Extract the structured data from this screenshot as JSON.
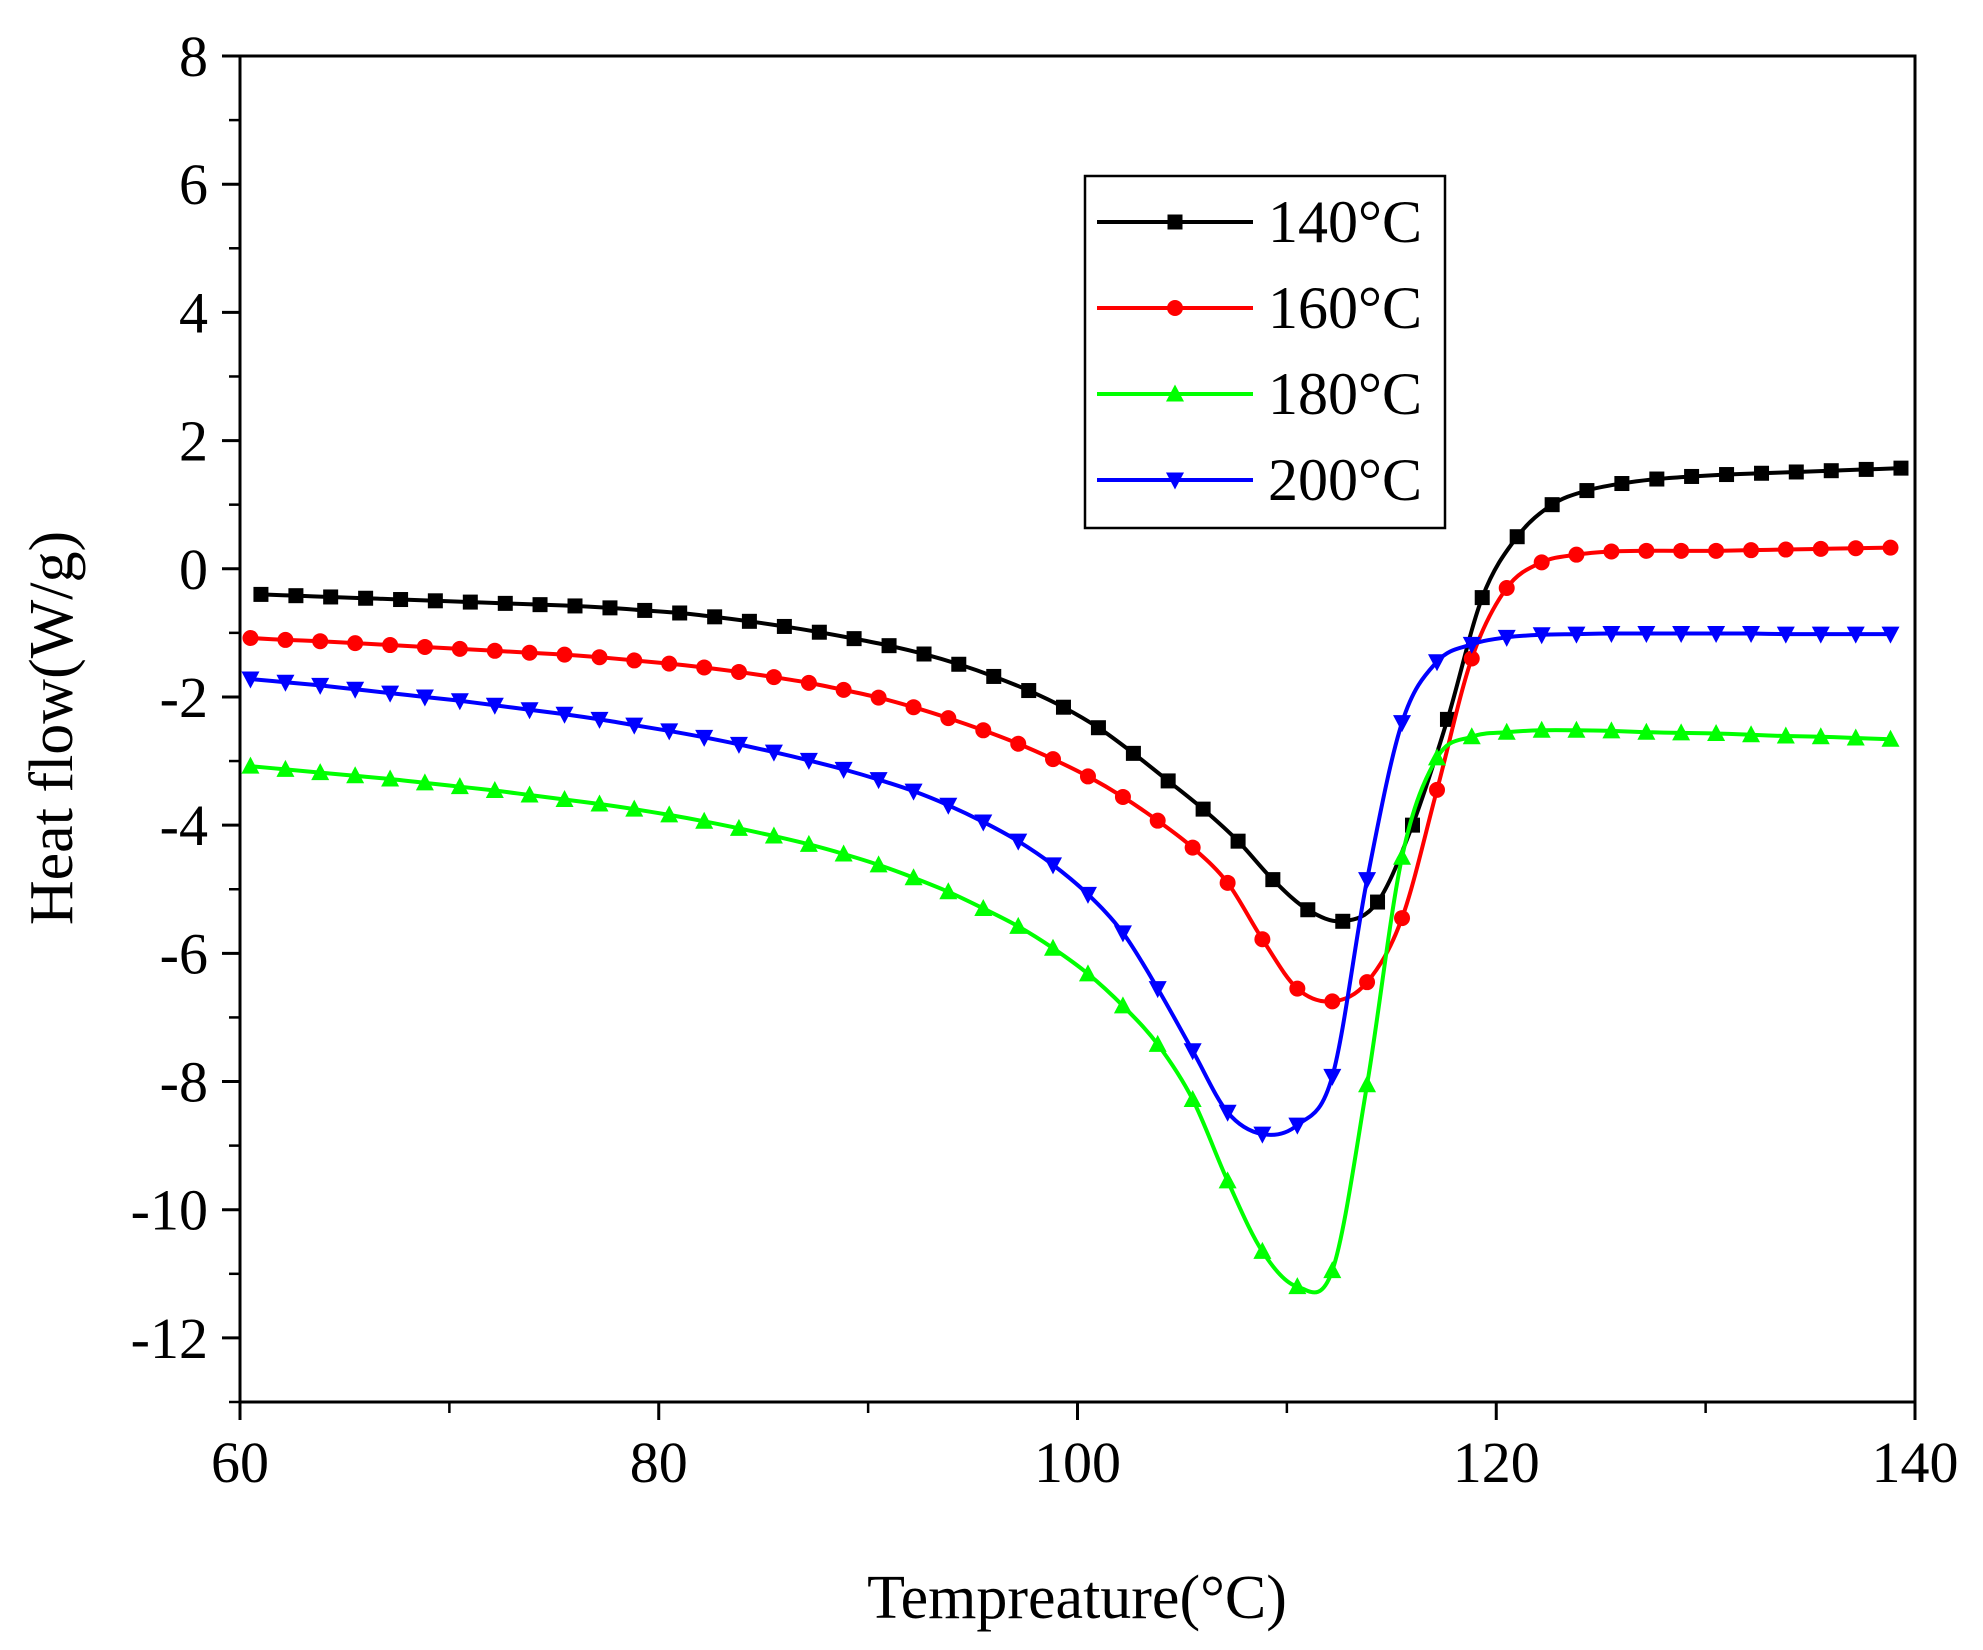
{
  "chart_data": {
    "type": "line",
    "title": "",
    "xlabel": "Tempreature(°C)",
    "ylabel": "Heat flow(W/g)",
    "xlim": [
      60,
      140
    ],
    "ylim": [
      -13,
      8
    ],
    "xticks": [
      60,
      80,
      100,
      120,
      140
    ],
    "xtick_labels": [
      "60",
      "80",
      "100",
      "120",
      "140"
    ],
    "yticks": [
      8,
      6,
      4,
      2,
      0,
      -2,
      -4,
      -6,
      -8,
      -10,
      -12
    ],
    "ytick_labels": [
      "8",
      "6",
      "4",
      "2",
      "0",
      "-2",
      "-4",
      "-6",
      "-8",
      "-10",
      "-12"
    ],
    "grid": false,
    "legend_position": "top-right",
    "series": [
      {
        "name": "140°C",
        "color": "#000000",
        "marker": "square",
        "x": [
          61,
          62.67,
          64.33,
          66,
          67.67,
          69.33,
          71,
          72.67,
          74.33,
          76,
          77.67,
          79.33,
          81,
          82.67,
          84.33,
          86,
          87.67,
          89.33,
          91,
          92.67,
          94.33,
          96,
          97.67,
          99.33,
          101,
          102.67,
          104.33,
          106,
          107.67,
          109.33,
          111,
          112.67,
          114.33,
          116,
          117.67,
          119.33,
          121,
          122.67,
          124.33,
          126,
          127.67,
          129.33,
          131,
          132.67,
          134.33,
          136,
          137.67,
          139.33
        ],
        "y": [
          -0.4,
          -0.42,
          -0.44,
          -0.46,
          -0.48,
          -0.5,
          -0.52,
          -0.54,
          -0.56,
          -0.58,
          -0.61,
          -0.65,
          -0.69,
          -0.75,
          -0.82,
          -0.9,
          -0.99,
          -1.09,
          -1.2,
          -1.33,
          -1.49,
          -1.68,
          -1.9,
          -2.16,
          -2.48,
          -2.88,
          -3.31,
          -3.75,
          -4.25,
          -4.85,
          -5.32,
          -5.5,
          -5.2,
          -4,
          -2.35,
          -0.45,
          0.5,
          1.0,
          1.22,
          1.33,
          1.4,
          1.44,
          1.47,
          1.49,
          1.51,
          1.53,
          1.55,
          1.57
        ]
      },
      {
        "name": "160°C",
        "color": "#ff0000",
        "marker": "circle",
        "x": [
          60.5,
          62.17,
          63.83,
          65.5,
          67.17,
          68.83,
          70.5,
          72.17,
          73.83,
          75.5,
          77.17,
          78.83,
          80.5,
          82.17,
          83.83,
          85.5,
          87.17,
          88.83,
          90.5,
          92.17,
          93.83,
          95.5,
          97.17,
          98.83,
          100.5,
          102.17,
          103.83,
          105.5,
          107.17,
          108.83,
          110.5,
          112.17,
          113.83,
          115.5,
          117.17,
          118.83,
          120.5,
          122.17,
          123.83,
          125.5,
          127.17,
          128.83,
          130.5,
          132.17,
          133.83,
          135.5,
          137.17,
          138.83
        ],
        "y": [
          -1.08,
          -1.11,
          -1.13,
          -1.16,
          -1.19,
          -1.22,
          -1.25,
          -1.28,
          -1.31,
          -1.34,
          -1.38,
          -1.43,
          -1.48,
          -1.54,
          -1.61,
          -1.69,
          -1.78,
          -1.89,
          -2.01,
          -2.16,
          -2.33,
          -2.52,
          -2.73,
          -2.97,
          -3.24,
          -3.56,
          -3.93,
          -4.35,
          -4.9,
          -5.78,
          -6.55,
          -6.75,
          -6.45,
          -5.45,
          -3.45,
          -1.4,
          -0.3,
          0.1,
          0.22,
          0.27,
          0.28,
          0.28,
          0.28,
          0.29,
          0.3,
          0.31,
          0.32,
          0.33
        ]
      },
      {
        "name": "180°C",
        "color": "#00ff00",
        "marker": "triangle-up",
        "x": [
          60.5,
          62.17,
          63.83,
          65.5,
          67.17,
          68.83,
          70.5,
          72.17,
          73.83,
          75.5,
          77.17,
          78.83,
          80.5,
          82.17,
          83.83,
          85.5,
          87.17,
          88.83,
          90.5,
          92.17,
          93.83,
          95.5,
          97.17,
          98.83,
          100.5,
          102.17,
          103.83,
          105.5,
          107.17,
          108.83,
          110.5,
          112.17,
          113.83,
          115.5,
          117.17,
          118.83,
          120.5,
          122.17,
          123.83,
          125.5,
          127.17,
          128.83,
          130.5,
          132.17,
          133.83,
          135.5,
          137.17,
          138.83
        ],
        "y": [
          -3.08,
          -3.13,
          -3.18,
          -3.23,
          -3.28,
          -3.34,
          -3.4,
          -3.46,
          -3.53,
          -3.6,
          -3.67,
          -3.75,
          -3.84,
          -3.94,
          -4.05,
          -4.17,
          -4.3,
          -4.45,
          -4.62,
          -4.82,
          -5.04,
          -5.3,
          -5.58,
          -5.92,
          -6.32,
          -6.82,
          -7.42,
          -8.28,
          -9.55,
          -10.65,
          -11.2,
          -10.95,
          -8.05,
          -4.5,
          -2.95,
          -2.62,
          -2.55,
          -2.52,
          -2.52,
          -2.53,
          -2.55,
          -2.56,
          -2.57,
          -2.59,
          -2.61,
          -2.62,
          -2.64,
          -2.66
        ]
      },
      {
        "name": "200°C",
        "color": "#0000ff",
        "marker": "triangle-down",
        "x": [
          60.5,
          62.17,
          63.83,
          65.5,
          67.17,
          68.83,
          70.5,
          72.17,
          73.83,
          75.5,
          77.17,
          78.83,
          80.5,
          82.17,
          83.83,
          85.5,
          87.17,
          88.83,
          90.5,
          92.17,
          93.83,
          95.5,
          97.17,
          98.83,
          100.5,
          102.17,
          103.83,
          105.5,
          107.17,
          108.83,
          110.5,
          112.17,
          113.83,
          115.5,
          117.17,
          118.83,
          120.5,
          122.17,
          123.83,
          125.5,
          127.17,
          128.83,
          130.5,
          132.17,
          133.83,
          135.5,
          137.17,
          138.83
        ],
        "y": [
          -1.72,
          -1.77,
          -1.82,
          -1.88,
          -1.94,
          -2.0,
          -2.06,
          -2.13,
          -2.2,
          -2.27,
          -2.35,
          -2.44,
          -2.53,
          -2.63,
          -2.74,
          -2.86,
          -2.99,
          -3.13,
          -3.29,
          -3.47,
          -3.69,
          -3.95,
          -4.25,
          -4.62,
          -5.08,
          -5.68,
          -6.55,
          -7.52,
          -8.48,
          -8.82,
          -8.68,
          -7.92,
          -4.85,
          -2.4,
          -1.45,
          -1.18,
          -1.07,
          -1.03,
          -1.02,
          -1.01,
          -1.01,
          -1.01,
          -1.01,
          -1.01,
          -1.02,
          -1.02,
          -1.02,
          -1.02
        ]
      }
    ]
  }
}
